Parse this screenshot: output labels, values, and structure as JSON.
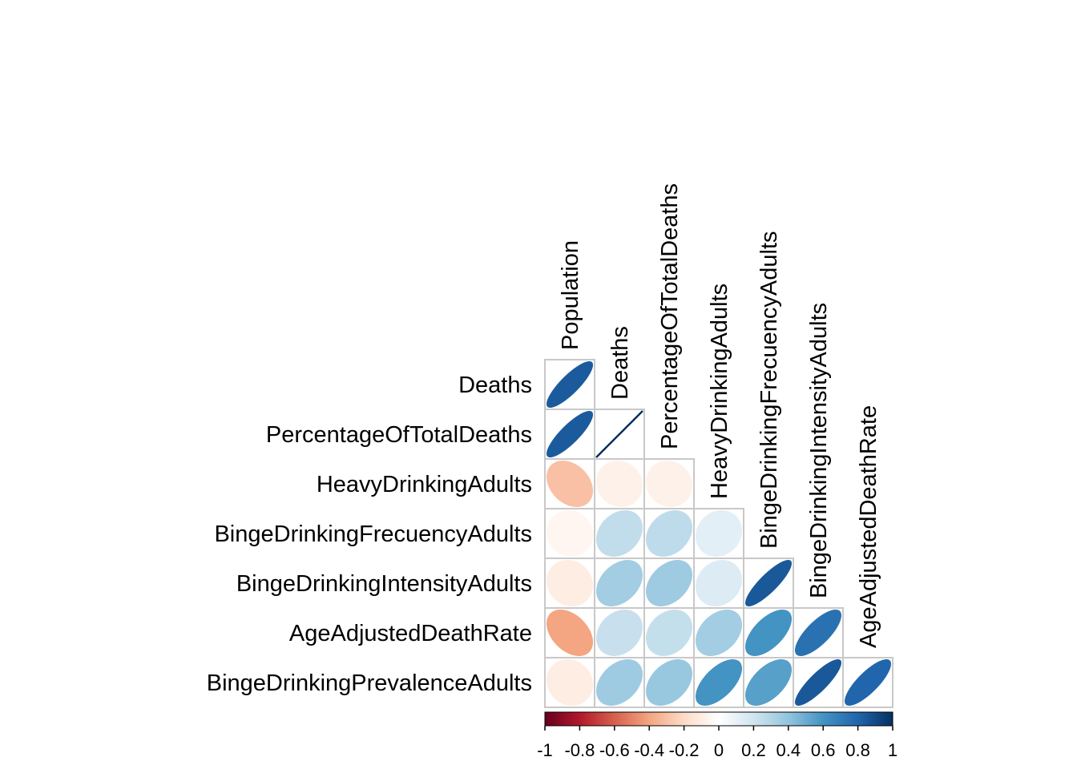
{
  "chart_data": {
    "type": "heatmap",
    "style": "corrplot-ellipse-lower",
    "row_labels": [
      "Deaths",
      "PercentageOfTotalDeaths",
      "HeavyDrinkingAdults",
      "BingeDrinkingFrecuencyAdults",
      "BingeDrinkingIntensityAdults",
      "AgeAdjustedDeathRate",
      "BingeDrinkingPrevalenceAdults"
    ],
    "column_labels": [
      "Population",
      "Deaths",
      "PercentageOfTotalDeaths",
      "HeavyDrinkingAdults",
      "BingeDrinkingFrecuencyAdults",
      "BingeDrinkingIntensityAdults",
      "AgeAdjustedDeathRate"
    ],
    "matrix": [
      [
        0.84
      ],
      [
        0.84,
        1.0
      ],
      [
        -0.3,
        -0.08,
        -0.08
      ],
      [
        -0.05,
        0.25,
        0.26,
        0.12
      ],
      [
        -0.1,
        0.35,
        0.36,
        0.15,
        0.85
      ],
      [
        -0.4,
        0.23,
        0.24,
        0.35,
        0.6,
        0.75
      ],
      [
        -0.1,
        0.36,
        0.38,
        0.6,
        0.55,
        0.85,
        0.8
      ]
    ],
    "colorbar": {
      "range": [
        -1,
        1
      ],
      "tick_labels": [
        "-1",
        "-0.8",
        "-0.6",
        "-0.4",
        "-0.2",
        "0",
        "0.2",
        "0.4",
        "0.6",
        "0.8",
        "1"
      ],
      "colors": [
        "#67001F",
        "#B2182B",
        "#D6604D",
        "#F4A582",
        "#FDDBC7",
        "#FFFFFF",
        "#D1E5F0",
        "#92C5DE",
        "#4393C3",
        "#2166AC",
        "#053061"
      ]
    }
  }
}
